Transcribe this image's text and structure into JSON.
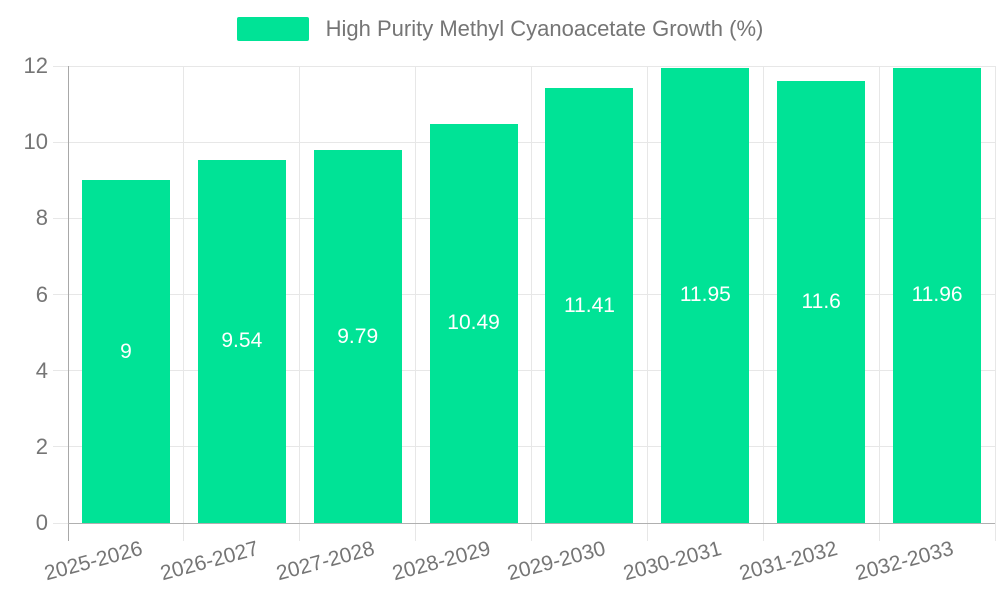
{
  "legend": {
    "label": "High Purity Methyl Cyanoacetate Growth (%)",
    "swatch_color": "#00E396"
  },
  "chart_data": {
    "type": "bar",
    "title": "High Purity Methyl Cyanoacetate Growth (%)",
    "categories": [
      "2025-2026",
      "2026-2027",
      "2027-2028",
      "2028-2029",
      "2029-2030",
      "2030-2031",
      "2031-2032",
      "2032-2033"
    ],
    "series": [
      {
        "name": "High Purity Methyl Cyanoacetate Growth (%)",
        "values": [
          9,
          9.54,
          9.79,
          10.49,
          11.41,
          11.95,
          11.6,
          11.96
        ]
      }
    ],
    "value_labels": [
      "9",
      "9.54",
      "9.79",
      "10.49",
      "11.41",
      "11.95",
      "11.6",
      "11.96"
    ],
    "xlabel": "",
    "ylabel": "",
    "ylim": [
      0,
      12
    ],
    "yticks": [
      0,
      2,
      4,
      6,
      8,
      10,
      12
    ],
    "grid": true,
    "legend_position": "top",
    "colors": {
      "bar": "#00E396",
      "grid": "#e7e7e7",
      "y_axis_line": "#a8a8a8",
      "x_axis_line": "#b0b0b0",
      "axis_label": "#757575",
      "value_label": "#ffffff"
    }
  }
}
